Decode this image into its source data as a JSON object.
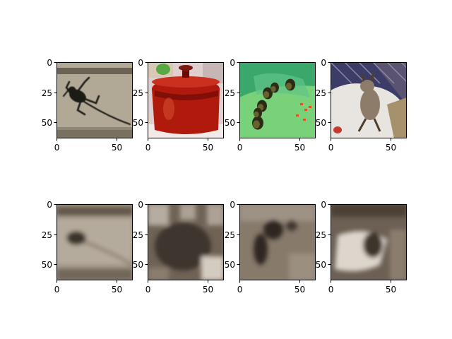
{
  "figure": {
    "background": "#ffffff",
    "axis_color": "#000000",
    "panels": [
      {
        "id": "r1c1",
        "row": 1,
        "col": 1,
        "content": "grey wall with dark gecko silhouette",
        "xticks": [
          "0",
          "50"
        ],
        "yticks": [
          "0",
          "25",
          "50"
        ],
        "colors": {
          "base": "#b1a896",
          "band": "#6b6353",
          "subject": "#1b1a18"
        }
      },
      {
        "id": "r1c2",
        "row": 1,
        "col": 2,
        "content": "red enamel pot with lid",
        "xticks": [
          "0",
          "50"
        ],
        "yticks": [
          "0",
          "25",
          "50"
        ],
        "colors": {
          "base": "#e0cfcf",
          "accent": "#58a843",
          "subject": "#b01a0c",
          "shade": "#6d0a05"
        }
      },
      {
        "id": "r1c3",
        "row": 1,
        "col": 3,
        "content": "ducklings on green cloth",
        "xticks": [
          "0",
          "50"
        ],
        "yticks": [
          "0",
          "25",
          "50"
        ],
        "colors": {
          "base": "#3aa86a",
          "cloth": "#79d17a",
          "subject": "#2d2a18",
          "accent": "#e5511d"
        }
      },
      {
        "id": "r1c4",
        "row": 1,
        "col": 4,
        "content": "wallaby joey in white towel",
        "xticks": [
          "0",
          "50"
        ],
        "yticks": [
          "0",
          "25",
          "50"
        ],
        "colors": {
          "base": "#3b3d68",
          "cloth": "#e8e4e0",
          "subject": "#8e7c6a",
          "shade": "#4e3e2c"
        }
      },
      {
        "id": "r2c1",
        "row": 2,
        "col": 1,
        "content": "blurry reconstruction of gecko image",
        "xticks": [
          "0",
          "50"
        ],
        "yticks": [
          "0",
          "25",
          "50"
        ],
        "colors": {
          "base": "#9d9080",
          "band": "#5e564a",
          "subject": "#3b342b",
          "light": "#bdb4a6"
        }
      },
      {
        "id": "r2c2",
        "row": 2,
        "col": 2,
        "content": "blurry reconstruction of pot image",
        "xticks": [
          "0",
          "50"
        ],
        "yticks": [
          "0",
          "25",
          "50"
        ],
        "colors": {
          "base": "#6f6356",
          "subject": "#3e362d",
          "light": "#d4ccc0"
        }
      },
      {
        "id": "r2c3",
        "row": 2,
        "col": 3,
        "content": "blurry reconstruction of ducklings image",
        "xticks": [
          "0",
          "50"
        ],
        "yticks": [
          "0",
          "25",
          "50"
        ],
        "colors": {
          "base": "#877a6b",
          "subject": "#2f2822",
          "light": "#a89d8e"
        }
      },
      {
        "id": "r2c4",
        "row": 2,
        "col": 4,
        "content": "blurry reconstruction of wallaby image",
        "xticks": [
          "0",
          "50"
        ],
        "yticks": [
          "0",
          "25",
          "50"
        ],
        "colors": {
          "base": "#6c6054",
          "subject": "#3e342b",
          "light": "#ddd6cc"
        }
      }
    ]
  }
}
